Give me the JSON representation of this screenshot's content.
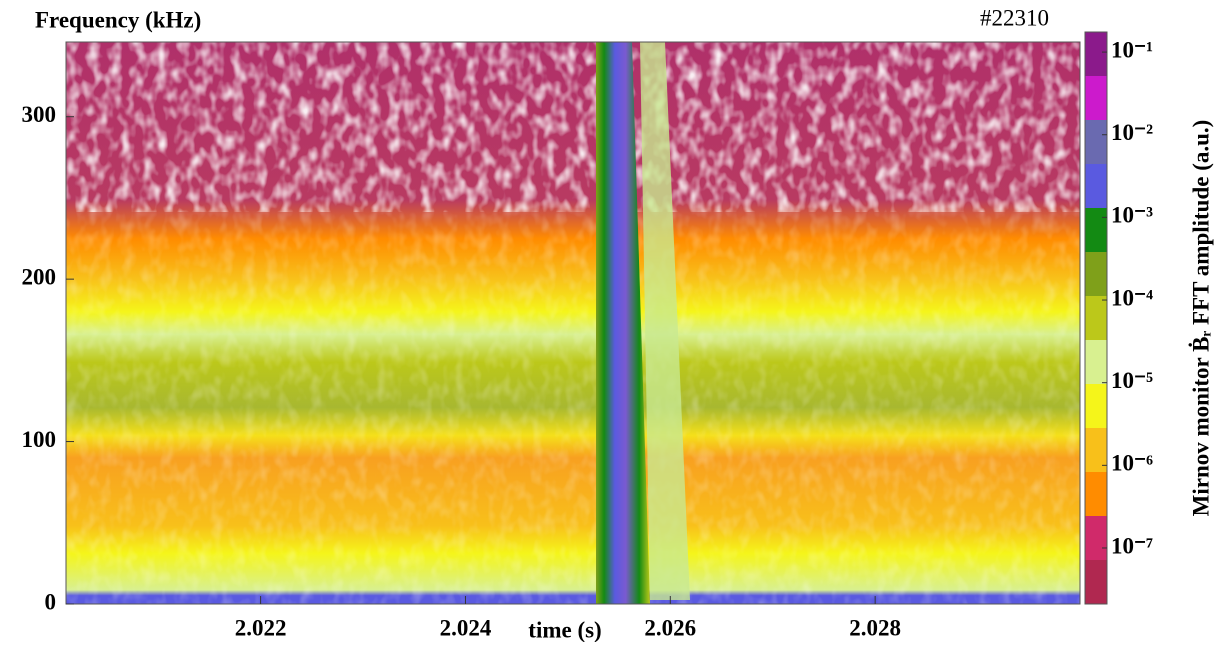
{
  "chart_data": {
    "type": "spectrogram",
    "ylabel": "Frequency (kHz)",
    "xlabel": "time (s)",
    "annotation": "#22310",
    "xlim": [
      2.0201,
      2.03
    ],
    "xticks": [
      2.022,
      2.024,
      2.026,
      2.028
    ],
    "ylim": [
      0,
      346
    ],
    "yticks": [
      0,
      100,
      200,
      300
    ],
    "colorbar": {
      "label": "Mirnov monitor Ḃᵣ FFT amplitude  (a.u.)",
      "log": true,
      "lim": [
        2.1e-08,
        0.175
      ],
      "colors": [
        "#8b1a8b",
        "#cc1acc",
        "#6a6ab0",
        "#5a5ae0",
        "#138a13",
        "#7fa01a",
        "#bcc81a",
        "#d8f090",
        "#f5f51a",
        "#f8c01a",
        "#ff8c00",
        "#d02a6a",
        "#b02850"
      ],
      "ticks": [
        {
          "value": 0.1,
          "label": "10⁻¹"
        },
        {
          "value": 0.01,
          "label": "10⁻²"
        },
        {
          "value": 0.001,
          "label": "10⁻³"
        },
        {
          "value": 0.0001,
          "label": "10⁻⁴"
        },
        {
          "value": 1e-05,
          "label": "10⁻⁵"
        },
        {
          "value": 1e-06,
          "label": "10⁻⁶"
        },
        {
          "value": 1e-07,
          "label": "10⁻⁷"
        }
      ]
    }
  }
}
